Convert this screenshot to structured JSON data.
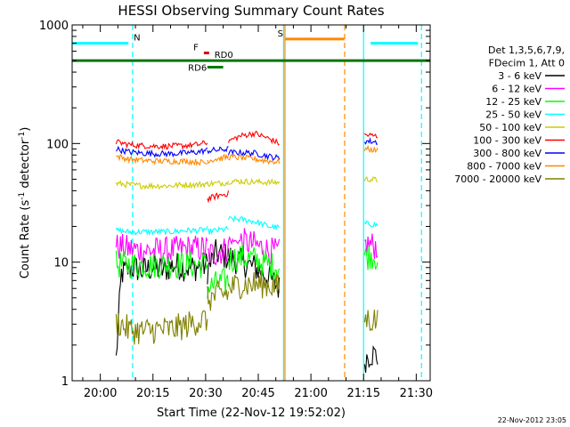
{
  "chart_data": {
    "type": "line",
    "title": "HESSI Observing Summary Count Rates",
    "xlabel": "Start Time (22-Nov-12 19:52:02)",
    "ylabel_main": "Count Rate (s",
    "ylabel_sup": "-1",
    "ylabel_mid": " detector",
    "ylabel_sup2": "-1",
    "ylabel_end": ")",
    "yscale": "log",
    "ylim": [
      1,
      1000
    ],
    "xlim_minutes": [
      -8.03,
      93.97
    ],
    "x_unit_note": "minutes after 20:00",
    "x_ticks": [
      {
        "m": 0,
        "label": "20:00"
      },
      {
        "m": 15,
        "label": "20:15"
      },
      {
        "m": 30,
        "label": "20:30"
      },
      {
        "m": 45,
        "label": "20:45"
      },
      {
        "m": 60,
        "label": "21:00"
      },
      {
        "m": 75,
        "label": "21:15"
      },
      {
        "m": 90,
        "label": "21:30"
      }
    ],
    "y_ticks": [
      {
        "v": 1,
        "label": "1"
      },
      {
        "v": 10,
        "label": "10"
      },
      {
        "v": 100,
        "label": "100"
      },
      {
        "v": 1000,
        "label": "1000"
      }
    ],
    "legend_header": [
      "Det 1,3,5,6,7,9,",
      "FDecim 1, Att 0"
    ],
    "legend_position": "right",
    "series": [
      {
        "name": "3 - 6 keV",
        "color": "#000000",
        "segments": [
          {
            "x": [
              4.5,
              6,
              9,
              12,
              15,
              18,
              21,
              24,
              27,
              30.5
            ],
            "y": [
              1.5,
              8,
              9,
              8.5,
              9,
              8.5,
              9.5,
              9,
              9,
              9.5
            ]
          },
          {
            "x": [
              30.5,
              33,
              36.5
            ],
            "y": [
              8.5,
              12,
              11
            ]
          },
          {
            "x": [
              36.5,
              40,
              44,
              48,
              51
            ],
            "y": [
              11,
              10,
              9,
              7.5,
              6
            ]
          },
          {
            "x": [
              75.3,
              77,
              79
            ],
            "y": [
              1.5,
              1.7,
              1.6
            ]
          }
        ]
      },
      {
        "name": "6 - 12 keV",
        "color": "#ff00ff",
        "segments": [
          {
            "x": [
              4.5,
              8,
              12,
              16,
              20,
              24,
              28,
              30.5
            ],
            "y": [
              13.5,
              13,
              12.5,
              12.5,
              12.5,
              13,
              13,
              13
            ]
          },
          {
            "x": [
              30.5,
              33,
              36.5
            ],
            "y": [
              11.5,
              12,
              13
            ]
          },
          {
            "x": [
              36.5,
              40,
              44,
              48,
              51
            ],
            "y": [
              15,
              15,
              14,
              12.5,
              12
            ]
          },
          {
            "x": [
              75.3,
              77,
              79
            ],
            "y": [
              14,
              14,
              13.5
            ]
          }
        ]
      },
      {
        "name": "12 - 25 keV",
        "color": "#00ff00",
        "segments": [
          {
            "x": [
              4.5,
              8,
              12,
              16,
              20,
              24,
              28,
              30.5
            ],
            "y": [
              9.5,
              9.5,
              9.5,
              9.5,
              9.5,
              9.5,
              9.5,
              9.5
            ]
          },
          {
            "x": [
              30.5,
              33,
              36.5
            ],
            "y": [
              6,
              6.5,
              7
            ]
          },
          {
            "x": [
              36.5,
              40,
              44,
              48,
              51
            ],
            "y": [
              10.5,
              11,
              10.5,
              9.5,
              9
            ]
          },
          {
            "x": [
              75.3,
              77,
              79
            ],
            "y": [
              11,
              11.5,
              11
            ]
          }
        ]
      },
      {
        "name": "25 - 50 keV",
        "color": "#00ffff",
        "segments": [
          {
            "x": [
              4.5,
              8,
              12,
              16,
              20,
              24,
              28,
              30.5
            ],
            "y": [
              18.5,
              18,
              18,
              18,
              18,
              18.5,
              18.5,
              19
            ]
          },
          {
            "x": [
              30.5,
              33,
              36.5
            ],
            "y": [
              18,
              18.5,
              19
            ]
          },
          {
            "x": [
              36.5,
              40,
              44,
              48,
              51
            ],
            "y": [
              23,
              23,
              22,
              20,
              19.5
            ]
          },
          {
            "x": [
              75.3,
              77,
              79
            ],
            "y": [
              21,
              21,
              20.5
            ]
          }
        ]
      },
      {
        "name": "50 - 100 keV",
        "color": "#cccc00",
        "segments": [
          {
            "x": [
              4.5,
              8,
              12,
              16,
              20,
              24,
              28,
              30.5
            ],
            "y": [
              46,
              45,
              44,
              44,
              44,
              45,
              45,
              46
            ]
          },
          {
            "x": [
              30.5,
              33,
              36.5
            ],
            "y": [
              46,
              46,
              47
            ]
          },
          {
            "x": [
              36.5,
              40,
              44,
              48,
              51
            ],
            "y": [
              48,
              48,
              47.5,
              47,
              47
            ]
          },
          {
            "x": [
              75.3,
              77,
              79
            ],
            "y": [
              50,
              50,
              49
            ]
          }
        ]
      },
      {
        "name": "100 - 300 keV",
        "color": "#ff0000",
        "segments": [
          {
            "x": [
              4.5,
              8,
              12,
              16,
              20,
              24,
              28,
              30.5
            ],
            "y": [
              103,
              98,
              96,
              95,
              95,
              96,
              98,
              102
            ]
          },
          {
            "x": [
              30.5,
              33,
              36.5
            ],
            "y": [
              34,
              36,
              38
            ]
          },
          {
            "x": [
              36.5,
              40,
              44,
              48,
              51
            ],
            "y": [
              105,
              116,
              122,
              110,
              100
            ]
          },
          {
            "x": [
              75.3,
              77,
              79
            ],
            "y": [
              118,
              117,
              115
            ]
          }
        ]
      },
      {
        "name": "300 - 800 keV",
        "color": "#0000ff",
        "segments": [
          {
            "x": [
              4.5,
              8,
              12,
              16,
              20,
              24,
              28,
              30.5
            ],
            "y": [
              90,
              85,
              83,
              82,
              82,
              83,
              85,
              88
            ]
          },
          {
            "x": [
              30.5,
              33,
              36.5
            ],
            "y": [
              87,
              88,
              90
            ]
          },
          {
            "x": [
              36.5,
              40,
              44,
              48,
              51
            ],
            "y": [
              84,
              84,
              83,
              78,
              75
            ]
          },
          {
            "x": [
              75.3,
              77,
              79
            ],
            "y": [
              105,
              104,
              103
            ]
          }
        ]
      },
      {
        "name": "800 - 7000 keV",
        "color": "#ff8800",
        "segments": [
          {
            "x": [
              4.5,
              8,
              12,
              16,
              20,
              24,
              28,
              30.5
            ],
            "y": [
              78,
              74,
              72,
              71,
              71,
              71,
              70,
              68
            ]
          },
          {
            "x": [
              30.5,
              33,
              36.5
            ],
            "y": [
              72,
              74,
              77
            ]
          },
          {
            "x": [
              36.5,
              40,
              44,
              48,
              51
            ],
            "y": [
              77,
              76,
              74,
              71,
              70
            ]
          },
          {
            "x": [
              75.3,
              77,
              79
            ],
            "y": [
              90,
              89,
              88
            ]
          }
        ]
      },
      {
        "name": "7000 - 20000 keV",
        "color": "#808000",
        "segments": [
          {
            "x": [
              4.5,
              8,
              12,
              16,
              20,
              24,
              28,
              30.5
            ],
            "y": [
              3.2,
              2.7,
              2.6,
              2.7,
              2.7,
              2.9,
              3.2,
              3.3
            ]
          },
          {
            "x": [
              30.5,
              33,
              36.5
            ],
            "y": [
              4.8,
              5.2,
              5.5
            ]
          },
          {
            "x": [
              36.5,
              40,
              44,
              48,
              51
            ],
            "y": [
              6,
              6.5,
              6.5,
              6.5,
              6
            ]
          },
          {
            "x": [
              75.3,
              77,
              79
            ],
            "y": [
              3.3,
              3.3,
              3.2
            ]
          }
        ]
      }
    ],
    "flag_bars": [
      {
        "label": "N",
        "color": "#00ffff",
        "segments": [
          [
            -8,
            8
          ],
          [
            77,
            90.5
          ]
        ],
        "y": 700,
        "label_x": 9.5
      },
      {
        "label": "S",
        "color": "#ff8800",
        "segments": [
          [
            52.5,
            69.5
          ]
        ],
        "y": 760,
        "label_x": 50.5
      },
      {
        "label": "F",
        "color": "#dd0000",
        "segments": [
          [
            29.5,
            31
          ]
        ],
        "y": 580,
        "label_x": 26.5
      },
      {
        "label": "RD0",
        "color": "#007700",
        "segments": [
          [
            -8,
            94
          ]
        ],
        "y": 500,
        "label_x": 32.5
      },
      {
        "label": "RD6",
        "color": "#007700",
        "segments": [
          [
            30.5,
            35
          ]
        ],
        "y": 440,
        "label_x": 25
      }
    ],
    "vertical_lines": [
      {
        "m": 52.2,
        "color": "#00ffff",
        "style": "solid"
      },
      {
        "m": 75.0,
        "color": "#00ffff",
        "style": "solid"
      },
      {
        "m": 9.2,
        "color": "#00ffff",
        "style": "dashed"
      },
      {
        "m": 91.5,
        "color": "#00ffff",
        "style": "dashed"
      },
      {
        "m": 52.6,
        "color": "#ff8800",
        "style": "solid"
      },
      {
        "m": 69.6,
        "color": "#ff8800",
        "style": "dashed"
      }
    ],
    "timestamp": "22-Nov-2012 23:05"
  }
}
